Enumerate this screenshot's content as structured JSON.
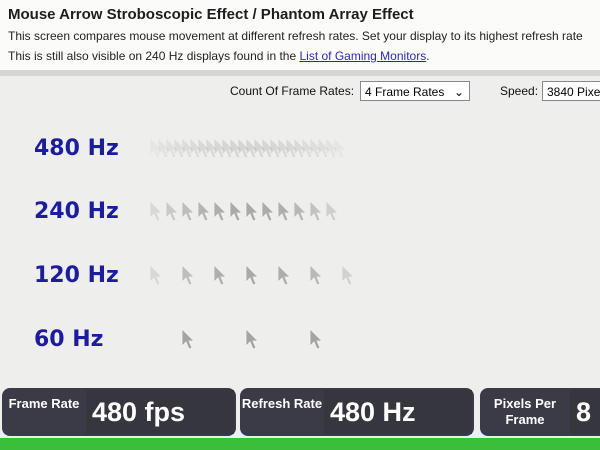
{
  "header": {
    "title": "Mouse Arrow Stroboscopic Effect / Phantom Array Effect",
    "description": "This screen compares mouse movement at different refresh rates. Set your display to its highest refresh rate",
    "note": "This is still also visible on 240 Hz displays found in the ",
    "link": "List of Gaming Monitors",
    "note_end": "."
  },
  "controls": {
    "frame_rates_label": "Count Of Frame Rates:",
    "frame_rates_value": "4 Frame Rates",
    "speed_label": "Speed:",
    "speed_value": "3840 Pixe"
  },
  "rows": [
    "480 Hz",
    "240 Hz",
    "120 Hz",
    "60 Hz"
  ],
  "status": [
    {
      "label": "Frame Rate",
      "value": "480 fps"
    },
    {
      "label": "Refresh Rate",
      "value": "480 Hz"
    },
    {
      "label": "Pixels Per Frame",
      "value": "8"
    }
  ]
}
